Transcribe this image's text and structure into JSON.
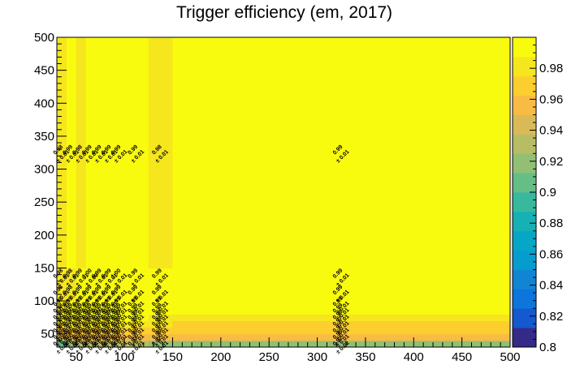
{
  "chart_data": {
    "type": "heatmap",
    "title": "Trigger efficiency (em, 2017)",
    "xlabel": "",
    "ylabel": "",
    "xlim": [
      30,
      500
    ],
    "ylim": [
      30,
      500
    ],
    "x_ticks": [
      50,
      100,
      150,
      200,
      250,
      300,
      350,
      400,
      450,
      500
    ],
    "y_ticks": [
      50,
      100,
      150,
      200,
      250,
      300,
      350,
      400,
      450,
      500
    ],
    "x_edges": [
      30,
      40,
      50,
      60,
      70,
      80,
      90,
      100,
      125,
      150,
      500
    ],
    "y_edges": [
      30,
      40,
      50,
      60,
      70,
      80,
      90,
      100,
      125,
      150,
      500
    ],
    "z_range": [
      0.8,
      1.0
    ],
    "z_ticks": [
      0.8,
      0.82,
      0.84,
      0.86,
      0.88,
      0.9,
      0.92,
      0.94,
      0.96,
      0.98
    ],
    "palette": [
      "#352a87",
      "#1459d0",
      "#0d75dc",
      "#1185d3",
      "#079cce",
      "#06a7c6",
      "#15b1b4",
      "#38b99e",
      "#65be86",
      "#92bf73",
      "#b7bd64",
      "#d9ba56",
      "#f8bb44",
      "#fcce2e",
      "#f5e61e",
      "#f9fb0e"
    ],
    "cells": [
      {
        "x": 35,
        "y": 35,
        "value": 0.91,
        "error": 0.02,
        "label": "0.91",
        "label_err": "± 0.02"
      },
      {
        "x": 45,
        "y": 35,
        "value": 0.92,
        "error": 0.02,
        "label": "0.92",
        "label_err": "± 0.02"
      },
      {
        "x": 55,
        "y": 35,
        "value": 0.93,
        "error": 0.02,
        "label": "0.93",
        "label_err": "± 0.02"
      },
      {
        "x": 65,
        "y": 35,
        "value": 0.93,
        "error": 0.01,
        "label": "0.93",
        "label_err": "± 0.01"
      },
      {
        "x": 75,
        "y": 35,
        "value": 0.93,
        "error": 0.01,
        "label": "0.93",
        "label_err": "± 0.01"
      },
      {
        "x": 85,
        "y": 35,
        "value": 0.93,
        "error": 0.01,
        "label": "0.93",
        "label_err": "± 0.01"
      },
      {
        "x": 95,
        "y": 35,
        "value": 0.93,
        "error": 0.01,
        "label": "0.93",
        "label_err": "± 0.01"
      },
      {
        "x": 112.5,
        "y": 35,
        "value": 0.93,
        "error": 0.01,
        "label": "0.93",
        "label_err": "± 0.01"
      },
      {
        "x": 137.5,
        "y": 35,
        "value": 0.92,
        "error": 0.01,
        "label": "0.92",
        "label_err": "± 0.01"
      },
      {
        "x": 325,
        "y": 35,
        "value": 0.92,
        "error": 0.02,
        "label": "0.92",
        "label_err": "± 0.02"
      },
      {
        "x": 35,
        "y": 45,
        "value": 0.95,
        "error": 0.01,
        "label": "0.95",
        "label_err": "± 0.01"
      },
      {
        "x": 45,
        "y": 45,
        "value": 0.96,
        "error": 0.01,
        "label": "0.96",
        "label_err": "± 0.01"
      },
      {
        "x": 55,
        "y": 45,
        "value": 0.96,
        "error": 0.01,
        "label": "0.96",
        "label_err": "± 0.01"
      },
      {
        "x": 65,
        "y": 45,
        "value": 0.96,
        "error": 0.01,
        "label": "0.96",
        "label_err": "± 0.01"
      },
      {
        "x": 75,
        "y": 45,
        "value": 0.96,
        "error": 0.01,
        "label": "0.96",
        "label_err": "± 0.01"
      },
      {
        "x": 85,
        "y": 45,
        "value": 0.96,
        "error": 0.01,
        "label": "0.96",
        "label_err": "± 0.01"
      },
      {
        "x": 95,
        "y": 45,
        "value": 0.96,
        "error": 0.01,
        "label": "0.96",
        "label_err": "± 0.01"
      },
      {
        "x": 112.5,
        "y": 45,
        "value": 0.96,
        "error": 0.01,
        "label": "0.96",
        "label_err": "± 0.01"
      },
      {
        "x": 137.5,
        "y": 45,
        "value": 0.96,
        "error": 0.01,
        "label": "0.96",
        "label_err": "± 0.01"
      },
      {
        "x": 325,
        "y": 45,
        "value": 0.96,
        "error": 0.01,
        "label": "0.96",
        "label_err": "± 0.01"
      },
      {
        "x": 35,
        "y": 55,
        "value": 0.96,
        "error": 0.01,
        "label": "0.96",
        "label_err": "± 0.01"
      },
      {
        "x": 45,
        "y": 55,
        "value": 0.97,
        "error": 0.01,
        "label": "0.97",
        "label_err": "± 0.01"
      },
      {
        "x": 55,
        "y": 55,
        "value": 0.97,
        "error": 0.01,
        "label": "0.97",
        "label_err": "± 0.01"
      },
      {
        "x": 65,
        "y": 55,
        "value": 0.97,
        "error": 0.01,
        "label": "0.97",
        "label_err": "± 0.01"
      },
      {
        "x": 75,
        "y": 55,
        "value": 0.97,
        "error": 0.01,
        "label": "0.97",
        "label_err": "± 0.01"
      },
      {
        "x": 85,
        "y": 55,
        "value": 0.97,
        "error": 0.01,
        "label": "0.97",
        "label_err": "± 0.01"
      },
      {
        "x": 95,
        "y": 55,
        "value": 0.97,
        "error": 0.01,
        "label": "0.97",
        "label_err": "± 0.01"
      },
      {
        "x": 112.5,
        "y": 55,
        "value": 0.97,
        "error": 0.01,
        "label": "0.97",
        "label_err": "± 0.01"
      },
      {
        "x": 137.5,
        "y": 55,
        "value": 0.97,
        "error": 0.01,
        "label": "0.97",
        "label_err": "± 0.01"
      },
      {
        "x": 325,
        "y": 55,
        "value": 0.97,
        "error": 0.01,
        "label": "0.97",
        "label_err": "± 0.01"
      },
      {
        "x": 35,
        "y": 65,
        "value": 0.98,
        "error": 0.01,
        "label": "0.98",
        "label_err": "± 0.01"
      },
      {
        "x": 45,
        "y": 65,
        "value": 0.98,
        "error": 0.01,
        "label": "0.98",
        "label_err": "± 0.01"
      },
      {
        "x": 55,
        "y": 65,
        "value": 0.98,
        "error": 0.01,
        "label": "0.98",
        "label_err": "± 0.01"
      },
      {
        "x": 65,
        "y": 65,
        "value": 0.98,
        "error": 0.01,
        "label": "0.98",
        "label_err": "± 0.01"
      },
      {
        "x": 75,
        "y": 65,
        "value": 0.98,
        "error": 0.01,
        "label": "0.98",
        "label_err": "± 0.01"
      },
      {
        "x": 85,
        "y": 65,
        "value": 0.98,
        "error": 0.01,
        "label": "0.98",
        "label_err": "± 0.01"
      },
      {
        "x": 95,
        "y": 65,
        "value": 0.98,
        "error": 0.01,
        "label": "0.98",
        "label_err": "± 0.01"
      },
      {
        "x": 112.5,
        "y": 65,
        "value": 0.98,
        "error": 0.01,
        "label": "0.98",
        "label_err": "± 0.01"
      },
      {
        "x": 137.5,
        "y": 65,
        "value": 0.98,
        "error": 0.01,
        "label": "0.98",
        "label_err": "± 0.01"
      },
      {
        "x": 325,
        "y": 65,
        "value": 0.97,
        "error": 0.01,
        "label": "0.97",
        "label_err": "± 0.01"
      },
      {
        "x": 35,
        "y": 75,
        "value": 0.98,
        "error": 0.01,
        "label": "0.98",
        "label_err": "± 0.01"
      },
      {
        "x": 45,
        "y": 75,
        "value": 0.98,
        "error": 0.01,
        "label": "0.98",
        "label_err": "± 0.01"
      },
      {
        "x": 55,
        "y": 75,
        "value": 0.98,
        "error": 0.01,
        "label": "0.98",
        "label_err": "± 0.01"
      },
      {
        "x": 65,
        "y": 75,
        "value": 0.98,
        "error": 0.01,
        "label": "0.98",
        "label_err": "± 0.01"
      },
      {
        "x": 75,
        "y": 75,
        "value": 0.99,
        "error": 0.01,
        "label": "0.99",
        "label_err": "± 0.01"
      },
      {
        "x": 85,
        "y": 75,
        "value": 0.99,
        "error": 0.01,
        "label": "0.99",
        "label_err": "± 0.01"
      },
      {
        "x": 95,
        "y": 75,
        "value": 0.99,
        "error": 0.01,
        "label": "0.99",
        "label_err": "± 0.01"
      },
      {
        "x": 112.5,
        "y": 75,
        "value": 0.99,
        "error": 0.01,
        "label": "0.99",
        "label_err": "± 0.01"
      },
      {
        "x": 137.5,
        "y": 75,
        "value": 0.98,
        "error": 0.01,
        "label": "0.98",
        "label_err": "± 0.01"
      },
      {
        "x": 325,
        "y": 75,
        "value": 0.98,
        "error": 0.01,
        "label": "0.98",
        "label_err": "± 0.01"
      },
      {
        "x": 35,
        "y": 85,
        "value": 0.98,
        "error": 0.01,
        "label": "0.98",
        "label_err": "± 0.01"
      },
      {
        "x": 45,
        "y": 85,
        "value": 0.99,
        "error": 0.01,
        "label": "0.99",
        "label_err": "± 0.01"
      },
      {
        "x": 55,
        "y": 85,
        "value": 0.99,
        "error": 0.01,
        "label": "0.99",
        "label_err": "± 0.01"
      },
      {
        "x": 65,
        "y": 85,
        "value": 0.99,
        "error": 0.01,
        "label": "0.99",
        "label_err": "± 0.01"
      },
      {
        "x": 75,
        "y": 85,
        "value": 0.99,
        "error": 0.01,
        "label": "0.99",
        "label_err": "± 0.01"
      },
      {
        "x": 85,
        "y": 85,
        "value": 0.99,
        "error": 0.01,
        "label": "0.99",
        "label_err": "± 0.01"
      },
      {
        "x": 95,
        "y": 85,
        "value": 0.99,
        "error": 0.01,
        "label": "0.99",
        "label_err": "± 0.01"
      },
      {
        "x": 112.5,
        "y": 85,
        "value": 0.99,
        "error": 0.01,
        "label": "0.99",
        "label_err": "± 0.01"
      },
      {
        "x": 137.5,
        "y": 85,
        "value": 0.99,
        "error": 0.01,
        "label": "0.99",
        "label_err": "± 0.01"
      },
      {
        "x": 325,
        "y": 85,
        "value": 0.99,
        "error": 0.01,
        "label": "0.99",
        "label_err": "± 0.01"
      },
      {
        "x": 35,
        "y": 95,
        "value": 0.98,
        "error": 0.01,
        "label": "0.98",
        "label_err": "± 0.01"
      },
      {
        "x": 45,
        "y": 95,
        "value": 0.99,
        "error": 0.01,
        "label": "0.99",
        "label_err": "± 0.01"
      },
      {
        "x": 55,
        "y": 95,
        "value": 0.99,
        "error": 0.01,
        "label": "0.99",
        "label_err": "± 0.01"
      },
      {
        "x": 65,
        "y": 95,
        "value": 0.99,
        "error": 0.01,
        "label": "0.99",
        "label_err": "± 0.01"
      },
      {
        "x": 75,
        "y": 95,
        "value": 0.99,
        "error": 0.01,
        "label": "0.99",
        "label_err": "± 0.01"
      },
      {
        "x": 85,
        "y": 95,
        "value": 0.99,
        "error": 0.01,
        "label": "0.99",
        "label_err": "± 0.01"
      },
      {
        "x": 95,
        "y": 95,
        "value": 0.99,
        "error": 0.01,
        "label": "0.99",
        "label_err": "± 0.01"
      },
      {
        "x": 112.5,
        "y": 95,
        "value": 0.99,
        "error": 0.01,
        "label": "0.99",
        "label_err": "± 0.01"
      },
      {
        "x": 137.5,
        "y": 95,
        "value": 0.99,
        "error": 0.01,
        "label": "0.99",
        "label_err": "± 0.01"
      },
      {
        "x": 325,
        "y": 95,
        "value": 0.99,
        "error": 0.01,
        "label": "0.99",
        "label_err": "± 0.01"
      },
      {
        "x": 35,
        "y": 112.5,
        "value": 0.98,
        "error": 0.01,
        "label": "0.98",
        "label_err": "± 0.01"
      },
      {
        "x": 45,
        "y": 112.5,
        "value": 0.98,
        "error": 0.01,
        "label": "0.98",
        "label_err": "± 0.01"
      },
      {
        "x": 55,
        "y": 112.5,
        "value": 0.99,
        "error": 0.01,
        "label": "0.99",
        "label_err": "± 0.01"
      },
      {
        "x": 65,
        "y": 112.5,
        "value": 0.99,
        "error": 0.01,
        "label": "0.99",
        "label_err": "± 0.01"
      },
      {
        "x": 75,
        "y": 112.5,
        "value": 0.99,
        "error": 0.01,
        "label": "0.99",
        "label_err": "± 0.01"
      },
      {
        "x": 85,
        "y": 112.5,
        "value": 0.99,
        "error": 0.01,
        "label": "0.99",
        "label_err": "± 0.01"
      },
      {
        "x": 95,
        "y": 112.5,
        "value": 0.99,
        "error": 0.01,
        "label": "0.99",
        "label_err": "± 0.01"
      },
      {
        "x": 112.5,
        "y": 112.5,
        "value": 0.99,
        "error": 0.01,
        "label": "0.99",
        "label_err": "± 0.01"
      },
      {
        "x": 137.5,
        "y": 112.5,
        "value": 0.99,
        "error": 0.01,
        "label": "0.99",
        "label_err": "± 0.01"
      },
      {
        "x": 325,
        "y": 112.5,
        "value": 0.99,
        "error": 0.01,
        "label": "0.99",
        "label_err": "± 0.01"
      },
      {
        "x": 35,
        "y": 137.5,
        "value": 0.98,
        "error": 0.01,
        "label": "0.98",
        "label_err": "± 0.01"
      },
      {
        "x": 45,
        "y": 137.5,
        "value": 0.98,
        "error": 0.01,
        "label": "0.98",
        "label_err": "± 0.01"
      },
      {
        "x": 55,
        "y": 137.5,
        "value": 0.99,
        "error": 0.01,
        "label": "0.99",
        "label_err": "± 0.01"
      },
      {
        "x": 65,
        "y": 137.5,
        "value": 1.0,
        "error": 0.0,
        "label": "1.00",
        "label_err": "± 0.00"
      },
      {
        "x": 75,
        "y": 137.5,
        "value": 0.99,
        "error": 0.01,
        "label": "0.99",
        "label_err": "± 0.01"
      },
      {
        "x": 85,
        "y": 137.5,
        "value": 0.99,
        "error": 0.01,
        "label": "0.99",
        "label_err": "± 0.01"
      },
      {
        "x": 95,
        "y": 137.5,
        "value": 1.0,
        "error": 0.01,
        "label": "1.00",
        "label_err": "± 0.01"
      },
      {
        "x": 112.5,
        "y": 137.5,
        "value": 0.99,
        "error": 0.01,
        "label": "0.99",
        "label_err": "± 0.01"
      },
      {
        "x": 137.5,
        "y": 137.5,
        "value": 0.99,
        "error": 0.01,
        "label": "0.99",
        "label_err": "± 0.01"
      },
      {
        "x": 325,
        "y": 137.5,
        "value": 0.99,
        "error": 0.01,
        "label": "0.99",
        "label_err": "± 0.01"
      },
      {
        "x": 35,
        "y": 325,
        "value": 0.98,
        "error": 0.01,
        "label": "0.98",
        "label_err": "± 0.01"
      },
      {
        "x": 45,
        "y": 325,
        "value": 0.99,
        "error": 0.01,
        "label": "0.99",
        "label_err": "± 0.01"
      },
      {
        "x": 55,
        "y": 325,
        "value": 0.98,
        "error": 0.01,
        "label": "0.98",
        "label_err": "± 0.01"
      },
      {
        "x": 65,
        "y": 325,
        "value": 0.99,
        "error": 0.01,
        "label": "0.99",
        "label_err": "± 0.01"
      },
      {
        "x": 75,
        "y": 325,
        "value": 0.99,
        "error": 0.01,
        "label": "0.99",
        "label_err": "± 0.01"
      },
      {
        "x": 85,
        "y": 325,
        "value": 0.99,
        "error": 0.01,
        "label": "0.99",
        "label_err": "± 0.01"
      },
      {
        "x": 95,
        "y": 325,
        "value": 0.99,
        "error": 0.01,
        "label": "0.99",
        "label_err": "± 0.01"
      },
      {
        "x": 112.5,
        "y": 325,
        "value": 0.99,
        "error": 0.01,
        "label": "0.99",
        "label_err": "± 0.01"
      },
      {
        "x": 137.5,
        "y": 325,
        "value": 0.98,
        "error": 0.01,
        "label": "0.98",
        "label_err": "± 0.01"
      },
      {
        "x": 325,
        "y": 325,
        "value": 0.99,
        "error": 0.01,
        "label": "0.99",
        "label_err": "± 0.01"
      }
    ]
  }
}
